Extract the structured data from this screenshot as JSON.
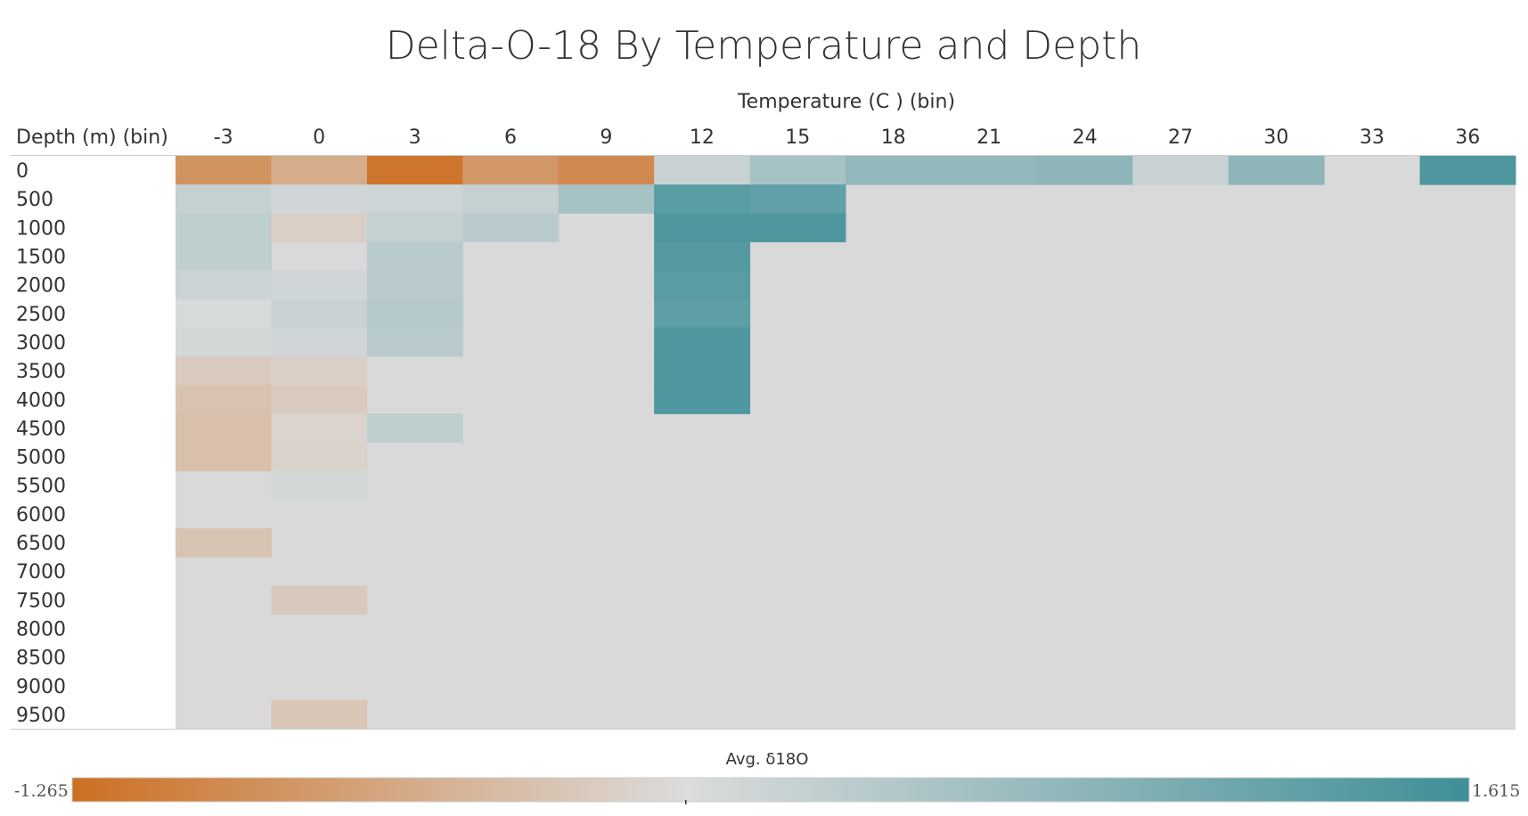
{
  "chart_data": {
    "type": "heatmap",
    "title": "Delta-O-18 By Temperature and Depth",
    "column_header": "Temperature (C ) (bin)",
    "row_header": "Depth (m) (bin)",
    "x": [
      -3,
      0,
      3,
      6,
      9,
      12,
      15,
      18,
      21,
      24,
      27,
      30,
      33,
      36
    ],
    "y": [
      0,
      500,
      1000,
      1500,
      2000,
      2500,
      3000,
      3500,
      4000,
      4500,
      5000,
      5500,
      6000,
      6500,
      7000,
      7500,
      8000,
      8500,
      9000,
      9500
    ],
    "values": [
      [
        -0.85,
        -0.55,
        -1.2,
        -0.8,
        -0.95,
        0.2,
        0.55,
        0.75,
        0.75,
        0.8,
        0.2,
        0.8,
        null,
        1.45
      ],
      [
        0.25,
        0.12,
        0.15,
        0.25,
        0.55,
        1.35,
        1.25,
        null,
        null,
        null,
        null,
        null,
        null,
        null
      ],
      [
        0.3,
        -0.15,
        0.25,
        0.35,
        null,
        1.45,
        1.45,
        null,
        null,
        null,
        null,
        null,
        null,
        null
      ],
      [
        0.3,
        null,
        0.35,
        null,
        null,
        1.4,
        null,
        null,
        null,
        null,
        null,
        null,
        null,
        null
      ],
      [
        0.18,
        0.12,
        0.35,
        null,
        null,
        1.35,
        null,
        null,
        null,
        null,
        null,
        null,
        null,
        null
      ],
      [
        0.05,
        0.2,
        0.4,
        null,
        null,
        1.3,
        null,
        null,
        null,
        null,
        null,
        null,
        null,
        null
      ],
      [
        0.1,
        0.12,
        0.35,
        null,
        null,
        1.45,
        null,
        null,
        null,
        null,
        null,
        null,
        null,
        null
      ],
      [
        -0.2,
        -0.15,
        null,
        null,
        null,
        1.45,
        null,
        null,
        null,
        null,
        null,
        null,
        null,
        null
      ],
      [
        -0.3,
        -0.2,
        null,
        null,
        null,
        1.45,
        null,
        null,
        null,
        null,
        null,
        null,
        null,
        null
      ],
      [
        -0.32,
        -0.1,
        0.3,
        null,
        null,
        null,
        null,
        null,
        null,
        null,
        null,
        null,
        null,
        null
      ],
      [
        -0.32,
        -0.12,
        null,
        null,
        null,
        null,
        null,
        null,
        null,
        null,
        null,
        null,
        null,
        null
      ],
      [
        null,
        0.1,
        null,
        null,
        null,
        null,
        null,
        null,
        null,
        null,
        null,
        null,
        null,
        null
      ],
      [
        null,
        null,
        null,
        null,
        null,
        null,
        null,
        null,
        null,
        null,
        null,
        null,
        null,
        null
      ],
      [
        -0.28,
        null,
        null,
        null,
        null,
        null,
        null,
        null,
        null,
        null,
        null,
        null,
        null,
        null
      ],
      [
        null,
        null,
        null,
        null,
        null,
        null,
        null,
        null,
        null,
        null,
        null,
        null,
        null,
        null
      ],
      [
        null,
        -0.22,
        null,
        null,
        null,
        null,
        null,
        null,
        null,
        null,
        null,
        null,
        null,
        null
      ],
      [
        null,
        null,
        null,
        null,
        null,
        null,
        null,
        null,
        null,
        null,
        null,
        null,
        null,
        null
      ],
      [
        null,
        null,
        null,
        null,
        null,
        null,
        null,
        null,
        null,
        null,
        null,
        null,
        null,
        null
      ],
      [
        null,
        null,
        null,
        null,
        null,
        null,
        null,
        null,
        null,
        null,
        null,
        null,
        null,
        null
      ],
      [
        null,
        -0.25,
        null,
        null,
        null,
        null,
        null,
        null,
        null,
        null,
        null,
        null,
        null,
        null
      ]
    ],
    "legend": {
      "title": "Avg. δ18O",
      "min": -1.265,
      "max": 1.615,
      "min_label": "-1.265",
      "max_label": "1.615"
    },
    "colors": {
      "low": "#cc6f22",
      "mid": "#dcdcdc",
      "high": "#3f8f97",
      "empty": "#d9d9d9",
      "grid_line": "#cccccc"
    }
  }
}
